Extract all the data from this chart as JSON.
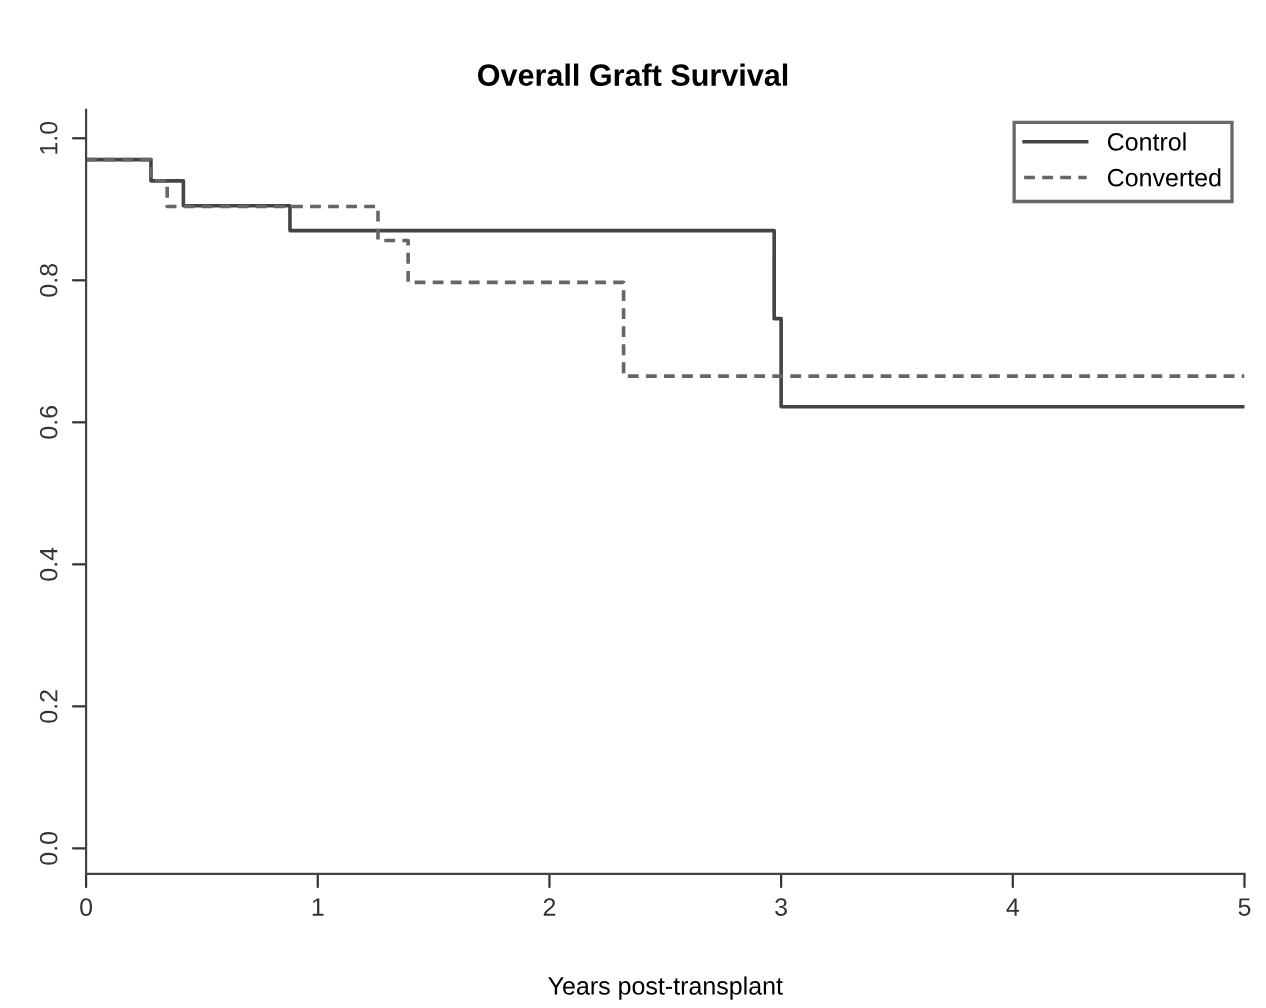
{
  "chart_data": {
    "type": "step",
    "title": "Overall Graft Survival",
    "xlabel": "Years post-transplant",
    "xlim": [
      0,
      5
    ],
    "xticks": [
      0,
      1,
      2,
      3,
      4,
      5
    ],
    "ylim": [
      -0.036,
      1.04
    ],
    "yticks": [
      {
        "value": 0,
        "label": "0.0"
      },
      0.2,
      0.4,
      0.6,
      0.8,
      {
        "value": 1,
        "label": "1.0"
      }
    ],
    "grid": false,
    "legend": "top right",
    "marker": "none",
    "series": [
      {
        "name": "Control",
        "color": "#444444",
        "line_style": "solid",
        "x": [
          0,
          0.28,
          0.42,
          0.88,
          2.97,
          3.0,
          5
        ],
        "values": [
          0.97,
          0.94,
          0.905,
          0.87,
          0.746,
          0.622,
          0.622
        ]
      },
      {
        "name": "Converted",
        "color": "#666666",
        "line_style": "dotted",
        "x": [
          0,
          0.28,
          0.35,
          1.26,
          1.39,
          2.32,
          5
        ],
        "values": [
          0.97,
          0.94,
          0.904,
          0.856,
          0.797,
          0.665,
          0.665
        ]
      }
    ]
  }
}
